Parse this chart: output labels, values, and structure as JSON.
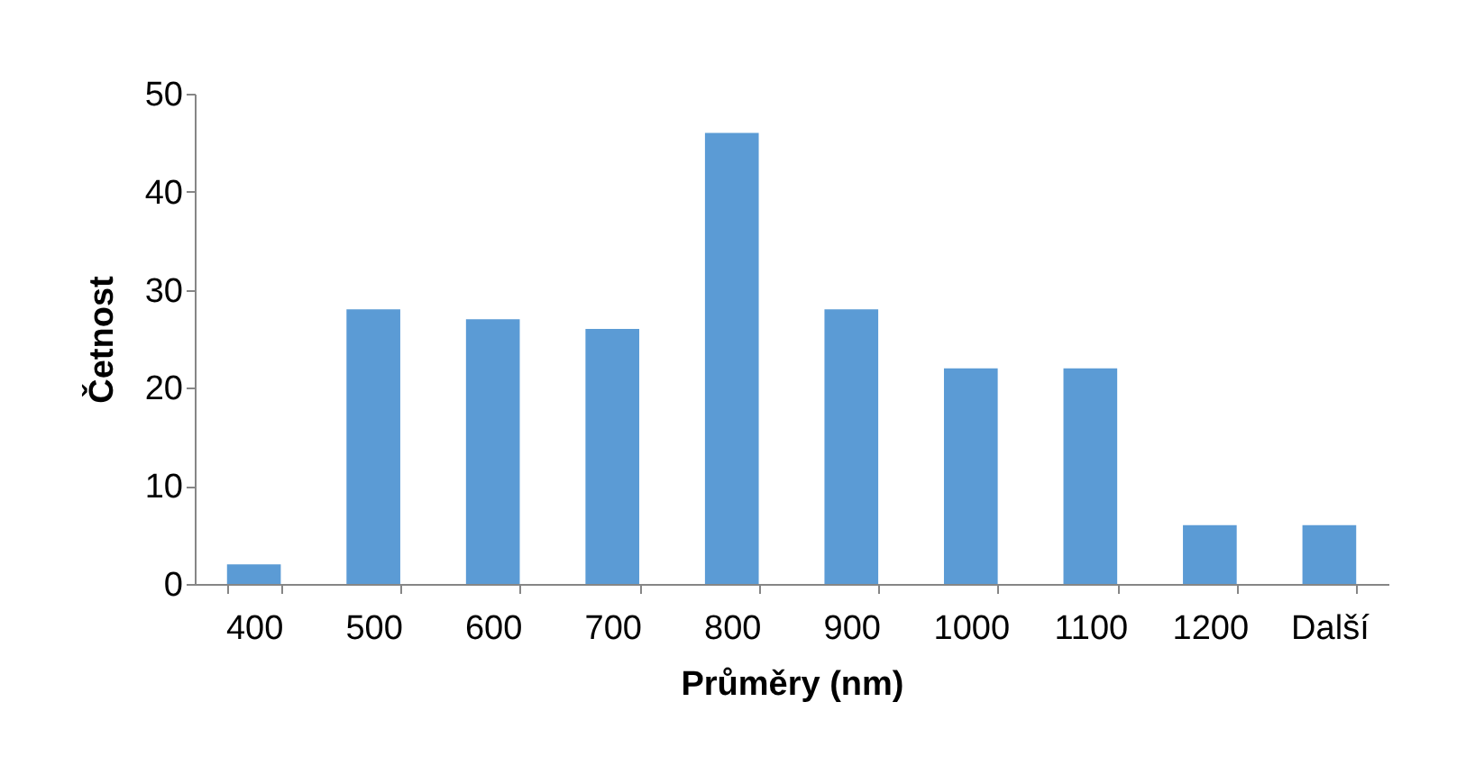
{
  "chart_data": {
    "type": "bar",
    "xlabel": "Průměry (nm)",
    "ylabel": "Četnost",
    "categories": [
      "400",
      "500",
      "600",
      "700",
      "800",
      "900",
      "1000",
      "1100",
      "1200",
      "Další"
    ],
    "values": [
      2,
      28,
      27,
      26,
      46,
      28,
      22,
      22,
      6,
      6
    ],
    "color": "#5b9bd5",
    "ylim": [
      0,
      50
    ],
    "yticks": [
      0,
      10,
      20,
      30,
      40,
      50
    ],
    "grid": false
  }
}
